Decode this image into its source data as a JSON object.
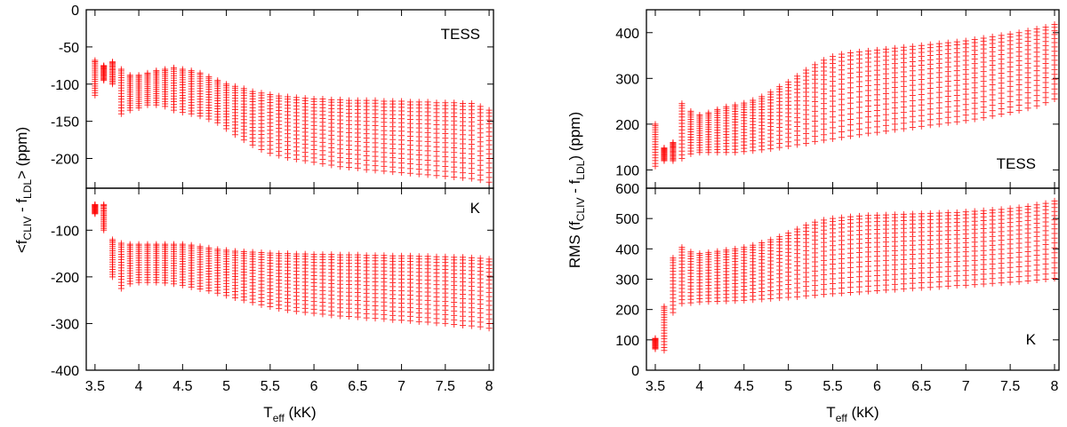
{
  "figure": {
    "left": {
      "ylabel": {
        "pre": "<f",
        "sub1": "CLIV",
        "mid": " - f",
        "sub2": "LDL",
        "post": "> (ppm)"
      },
      "xlabel": {
        "pre": "T",
        "sub": "eff",
        "post": " (kK)"
      }
    },
    "right": {
      "ylabel": {
        "pre": "RMS (f",
        "sub1": "CLIV",
        "mid": " - f",
        "sub2": "LDL",
        "post": ") (ppm)"
      },
      "xlabel": {
        "pre": "T",
        "sub": "eff",
        "post": " (kK)"
      }
    }
  },
  "colors": {
    "points": "#ff0000",
    "axes": "#000000"
  },
  "chart_data": [
    {
      "id": "left-top",
      "type": "scatter",
      "label": "TESS",
      "label_position": "top-right",
      "xlim": [
        3.4,
        8.05
      ],
      "ylim": [
        -240,
        0
      ],
      "xticks": [
        3.5,
        4,
        4.5,
        5,
        5.5,
        6,
        6.5,
        7,
        7.5,
        8
      ],
      "xtick_labels": [],
      "yticks": [
        0,
        -50,
        -100,
        -150,
        -200
      ],
      "ytick_labels": [
        "0",
        "-50",
        "-100",
        "-150",
        "-200"
      ],
      "teff_kK": [
        3.5,
        3.6,
        3.7,
        3.8,
        3.9,
        4.0,
        4.1,
        4.2,
        4.3,
        4.4,
        4.5,
        4.6,
        4.7,
        4.8,
        4.9,
        5.0,
        5.1,
        5.2,
        5.3,
        5.4,
        5.5,
        5.6,
        5.7,
        5.8,
        5.9,
        6.0,
        6.1,
        6.2,
        6.3,
        6.4,
        6.5,
        6.6,
        6.7,
        6.8,
        6.9,
        7.0,
        7.1,
        7.2,
        7.3,
        7.4,
        7.5,
        7.6,
        7.7,
        7.8,
        7.9,
        8.0
      ],
      "upper_envelope": [
        -68,
        -75,
        -70,
        -80,
        -88,
        -88,
        -85,
        -82,
        -80,
        -78,
        -80,
        -82,
        -85,
        -90,
        -95,
        -100,
        -103,
        -106,
        -110,
        -112,
        -114,
        -116,
        -117,
        -118,
        -119,
        -120,
        -120,
        -121,
        -121,
        -122,
        -122,
        -122,
        -122,
        -123,
        -123,
        -123,
        -124,
        -124,
        -124,
        -125,
        -125,
        -125,
        -126,
        -126,
        -130,
        -135
      ],
      "lower_envelope": [
        -115,
        -95,
        -100,
        -140,
        -135,
        -132,
        -128,
        -128,
        -130,
        -135,
        -138,
        -140,
        -143,
        -147,
        -152,
        -160,
        -168,
        -175,
        -182,
        -188,
        -193,
        -196,
        -199,
        -201,
        -203,
        -205,
        -207,
        -209,
        -211,
        -212,
        -213,
        -215,
        -216,
        -217,
        -218,
        -219,
        -220,
        -221,
        -222,
        -223,
        -224,
        -225,
        -226,
        -227,
        -229,
        -232
      ],
      "rows_per_column": 18
    },
    {
      "id": "left-bottom",
      "type": "scatter",
      "label": "K",
      "label_position": "top-right",
      "xlim": [
        3.4,
        8.05
      ],
      "ylim": [
        -400,
        -10
      ],
      "xticks": [
        3.5,
        4,
        4.5,
        5,
        5.5,
        6,
        6.5,
        7,
        7.5,
        8
      ],
      "xtick_labels": [
        "3.5",
        "4",
        "4.5",
        "5",
        "5.5",
        "6",
        "6.5",
        "7",
        "7.5",
        "8"
      ],
      "yticks": [
        -100,
        -200,
        -300,
        -400
      ],
      "ytick_labels": [
        "-100",
        "-200",
        "-300",
        "-400"
      ],
      "teff_kK": [
        3.5,
        3.6,
        3.7,
        3.8,
        3.9,
        4.0,
        4.1,
        4.2,
        4.3,
        4.4,
        4.5,
        4.6,
        4.7,
        4.8,
        4.9,
        5.0,
        5.1,
        5.2,
        5.3,
        5.4,
        5.5,
        5.6,
        5.7,
        5.8,
        5.9,
        6.0,
        6.1,
        6.2,
        6.3,
        6.4,
        6.5,
        6.6,
        6.7,
        6.8,
        6.9,
        7.0,
        7.1,
        7.2,
        7.3,
        7.4,
        7.5,
        7.6,
        7.7,
        7.8,
        7.9,
        8.0
      ],
      "upper_envelope": [
        -45,
        -45,
        -120,
        -128,
        -130,
        -130,
        -130,
        -130,
        -130,
        -130,
        -130,
        -132,
        -135,
        -138,
        -141,
        -143,
        -145,
        -146,
        -147,
        -148,
        -149,
        -150,
        -150,
        -151,
        -151,
        -152,
        -152,
        -152,
        -153,
        -153,
        -153,
        -154,
        -154,
        -154,
        -155,
        -155,
        -155,
        -156,
        -156,
        -157,
        -157,
        -158,
        -158,
        -159,
        -160,
        -162
      ],
      "lower_envelope": [
        -65,
        -100,
        -200,
        -225,
        -215,
        -212,
        -212,
        -212,
        -213,
        -215,
        -218,
        -222,
        -226,
        -230,
        -235,
        -240,
        -245,
        -250,
        -255,
        -260,
        -264,
        -268,
        -271,
        -274,
        -276,
        -278,
        -280,
        -282,
        -284,
        -285,
        -286,
        -288,
        -289,
        -290,
        -292,
        -293,
        -294,
        -296,
        -297,
        -299,
        -300,
        -302,
        -304,
        -305,
        -307,
        -310
      ],
      "rows_per_column": 18
    },
    {
      "id": "right-top",
      "type": "scatter",
      "label": "TESS",
      "label_position": "bottom-right",
      "xlim": [
        3.4,
        8.05
      ],
      "ylim": [
        60,
        450
      ],
      "xticks": [
        3.5,
        4,
        4.5,
        5,
        5.5,
        6,
        6.5,
        7,
        7.5,
        8
      ],
      "xtick_labels": [],
      "yticks": [
        100,
        200,
        300,
        400
      ],
      "ytick_labels": [
        "100",
        "200",
        "300",
        "400"
      ],
      "teff_kK": [
        3.5,
        3.6,
        3.7,
        3.8,
        3.9,
        4.0,
        4.1,
        4.2,
        4.3,
        4.4,
        4.5,
        4.6,
        4.7,
        4.8,
        4.9,
        5.0,
        5.1,
        5.2,
        5.3,
        5.4,
        5.5,
        5.6,
        5.7,
        5.8,
        5.9,
        6.0,
        6.1,
        6.2,
        6.3,
        6.4,
        6.5,
        6.6,
        6.7,
        6.8,
        6.9,
        7.0,
        7.1,
        7.2,
        7.3,
        7.4,
        7.5,
        7.6,
        7.7,
        7.8,
        7.9,
        8.0
      ],
      "upper_envelope": [
        200,
        148,
        160,
        245,
        228,
        220,
        225,
        232,
        238,
        242,
        246,
        252,
        260,
        270,
        282,
        292,
        305,
        318,
        330,
        340,
        348,
        353,
        356,
        358,
        360,
        362,
        364,
        366,
        368,
        370,
        372,
        374,
        376,
        378,
        380,
        382,
        385,
        388,
        391,
        394,
        397,
        400,
        404,
        408,
        412,
        418
      ],
      "lower_envelope": [
        108,
        120,
        120,
        125,
        135,
        138,
        138,
        138,
        138,
        138,
        140,
        142,
        144,
        146,
        149,
        152,
        155,
        158,
        162,
        165,
        168,
        171,
        174,
        177,
        180,
        182,
        185,
        188,
        190,
        193,
        195,
        198,
        200,
        203,
        205,
        208,
        211,
        214,
        218,
        222,
        226,
        230,
        235,
        240,
        247,
        255
      ],
      "rows_per_column": 18
    },
    {
      "id": "right-bottom",
      "type": "scatter",
      "label": "K",
      "label_position": "bottom-right",
      "xlim": [
        3.4,
        8.05
      ],
      "ylim": [
        0,
        600
      ],
      "xticks": [
        3.5,
        4,
        4.5,
        5,
        5.5,
        6,
        6.5,
        7,
        7.5,
        8
      ],
      "xtick_labels": [
        "3.5",
        "4",
        "4.5",
        "5",
        "5.5",
        "6",
        "6.5",
        "7",
        "7.5",
        "8"
      ],
      "yticks": [
        0,
        100,
        200,
        300,
        400,
        500,
        600
      ],
      "ytick_labels": [
        "0",
        "100",
        "200",
        "300",
        "400",
        "500",
        "600"
      ],
      "teff_kK": [
        3.5,
        3.6,
        3.7,
        3.8,
        3.9,
        4.0,
        4.1,
        4.2,
        4.3,
        4.4,
        4.5,
        4.6,
        4.7,
        4.8,
        4.9,
        5.0,
        5.1,
        5.2,
        5.3,
        5.4,
        5.5,
        5.6,
        5.7,
        5.8,
        5.9,
        6.0,
        6.1,
        6.2,
        6.3,
        6.4,
        6.5,
        6.6,
        6.7,
        6.8,
        6.9,
        7.0,
        7.1,
        7.2,
        7.3,
        7.4,
        7.5,
        7.6,
        7.7,
        7.8,
        7.9,
        8.0
      ],
      "upper_envelope": [
        105,
        210,
        370,
        405,
        390,
        385,
        388,
        392,
        396,
        400,
        405,
        412,
        420,
        430,
        440,
        452,
        465,
        478,
        488,
        495,
        500,
        503,
        506,
        508,
        510,
        511,
        512,
        513,
        514,
        515,
        516,
        517,
        518,
        519,
        520,
        522,
        524,
        526,
        528,
        530,
        533,
        536,
        540,
        545,
        550,
        558
      ],
      "lower_envelope": [
        70,
        65,
        190,
        220,
        222,
        225,
        226,
        227,
        228,
        229,
        230,
        232,
        234,
        236,
        238,
        240,
        242,
        245,
        247,
        250,
        252,
        254,
        256,
        258,
        260,
        262,
        264,
        266,
        268,
        270,
        272,
        273,
        275,
        277,
        279,
        280,
        282,
        284,
        286,
        288,
        290,
        292,
        294,
        297,
        300,
        303
      ],
      "rows_per_column": 18
    }
  ]
}
